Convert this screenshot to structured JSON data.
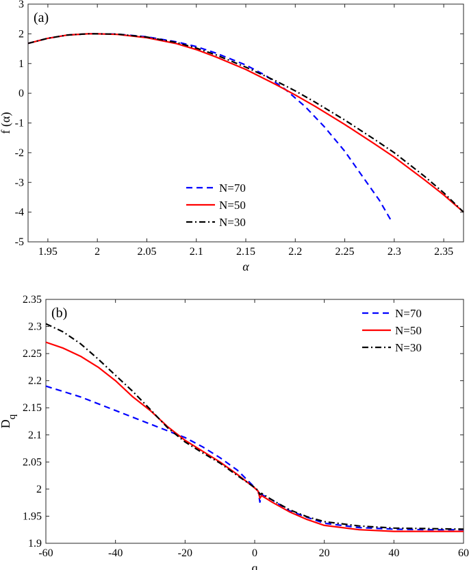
{
  "chart_data": [
    {
      "type": "line",
      "panel_label": "(a)",
      "xlabel": "α",
      "ylabel": "f (α)",
      "xlim": [
        1.93,
        2.37
      ],
      "ylim": [
        -5,
        3
      ],
      "xticks": [
        1.95,
        2,
        2.05,
        2.1,
        2.15,
        2.2,
        2.25,
        2.3,
        2.35
      ],
      "xtick_labels": [
        "1.95",
        "2",
        "2.05",
        "2.1",
        "2.15",
        "2.2",
        "2.25",
        "2.3",
        "2.35"
      ],
      "yticks": [
        -5,
        -4,
        -3,
        -2,
        -1,
        0,
        1,
        2,
        3
      ],
      "ytick_labels": [
        "-5",
        "-4",
        "-3",
        "-2",
        "-1",
        "0",
        "1",
        "2",
        "3"
      ],
      "legend_position": "bottom-center",
      "series": [
        {
          "name": "N=70",
          "color": "#0000ff",
          "style": "dashed",
          "x": [
            1.93,
            1.95,
            1.97,
            1.99,
            2.0,
            2.02,
            2.05,
            2.08,
            2.1,
            2.12,
            2.15,
            2.17,
            2.19,
            2.21,
            2.23,
            2.25,
            2.27,
            2.285,
            2.298
          ],
          "y": [
            1.68,
            1.85,
            1.96,
            2.0,
            2.0,
            1.99,
            1.9,
            1.73,
            1.57,
            1.35,
            0.95,
            0.6,
            0.13,
            -0.45,
            -1.15,
            -1.95,
            -2.9,
            -3.6,
            -4.35
          ]
        },
        {
          "name": "N=50",
          "color": "#ff0000",
          "style": "solid",
          "x": [
            1.93,
            1.95,
            1.97,
            1.99,
            2.0,
            2.02,
            2.05,
            2.08,
            2.1,
            2.12,
            2.15,
            2.18,
            2.2,
            2.22,
            2.25,
            2.28,
            2.3,
            2.33,
            2.35,
            2.37
          ],
          "y": [
            1.68,
            1.85,
            1.96,
            2.0,
            2.0,
            1.98,
            1.87,
            1.67,
            1.47,
            1.22,
            0.8,
            0.3,
            -0.06,
            -0.44,
            -1.05,
            -1.7,
            -2.15,
            -2.9,
            -3.42,
            -4.0
          ]
        },
        {
          "name": "N=30",
          "color": "#000000",
          "style": "dashdot",
          "x": [
            1.93,
            1.95,
            1.97,
            1.99,
            2.0,
            2.02,
            2.05,
            2.08,
            2.1,
            2.12,
            2.15,
            2.18,
            2.2,
            2.22,
            2.25,
            2.28,
            2.3,
            2.33,
            2.35,
            2.37
          ],
          "y": [
            1.68,
            1.85,
            1.96,
            2.0,
            2.0,
            1.99,
            1.89,
            1.71,
            1.52,
            1.29,
            0.88,
            0.42,
            0.08,
            -0.3,
            -0.9,
            -1.55,
            -2.0,
            -2.78,
            -3.35,
            -4.0
          ]
        }
      ]
    },
    {
      "type": "line",
      "panel_label": "(b)",
      "xlabel": "q",
      "ylabel": "D",
      "ylabel_subscript": "q",
      "xlim": [
        -60,
        60
      ],
      "ylim": [
        1.9,
        2.35
      ],
      "xticks": [
        -60,
        -40,
        -20,
        0,
        20,
        40,
        60
      ],
      "xtick_labels": [
        "-60",
        "-40",
        "-20",
        "0",
        "20",
        "40",
        "60"
      ],
      "yticks": [
        1.9,
        1.95,
        2,
        2.05,
        2.1,
        2.15,
        2.2,
        2.25,
        2.3,
        2.35
      ],
      "ytick_labels": [
        "1.9",
        "1.95",
        "2",
        "2.05",
        "2.1",
        "2.15",
        "2.2",
        "2.25",
        "2.3",
        "2.35"
      ],
      "legend_position": "top-right",
      "series": [
        {
          "name": "N=70",
          "color": "#0000ff",
          "style": "dashed",
          "x": [
            -60,
            -50,
            -40,
            -30,
            -20,
            -15,
            -10,
            -5,
            0,
            1,
            1.5,
            2,
            5,
            10,
            15,
            20,
            30,
            40,
            50,
            60
          ],
          "y": [
            2.19,
            2.17,
            2.145,
            2.12,
            2.095,
            2.078,
            2.058,
            2.035,
            2.003,
            1.996,
            1.976,
            1.99,
            1.98,
            1.96,
            1.948,
            1.937,
            1.929,
            1.926,
            1.925,
            1.925
          ]
        },
        {
          "name": "N=50",
          "color": "#ff0000",
          "style": "solid",
          "x": [
            -60,
            -55,
            -50,
            -45,
            -40,
            -35,
            -30,
            -25,
            -20,
            -15,
            -10,
            -5,
            0,
            1,
            1.5,
            2,
            5,
            10,
            15,
            20,
            30,
            40,
            50,
            60
          ],
          "y": [
            2.271,
            2.26,
            2.245,
            2.225,
            2.2,
            2.17,
            2.145,
            2.115,
            2.09,
            2.07,
            2.05,
            2.027,
            2.002,
            1.996,
            1.983,
            1.988,
            1.976,
            1.958,
            1.944,
            1.933,
            1.925,
            1.922,
            1.922,
            1.922
          ]
        },
        {
          "name": "N=30",
          "color": "#000000",
          "style": "dashdot",
          "x": [
            -60,
            -55,
            -50,
            -45,
            -40,
            -35,
            -30,
            -25,
            -20,
            -15,
            -10,
            -5,
            0,
            1,
            1.5,
            2,
            5,
            10,
            15,
            20,
            30,
            40,
            50,
            60
          ],
          "y": [
            2.305,
            2.29,
            2.268,
            2.24,
            2.21,
            2.18,
            2.147,
            2.113,
            2.087,
            2.067,
            2.048,
            2.025,
            2.003,
            1.997,
            1.99,
            1.992,
            1.98,
            1.962,
            1.949,
            1.94,
            1.932,
            1.928,
            1.927,
            1.926
          ]
        }
      ]
    }
  ]
}
